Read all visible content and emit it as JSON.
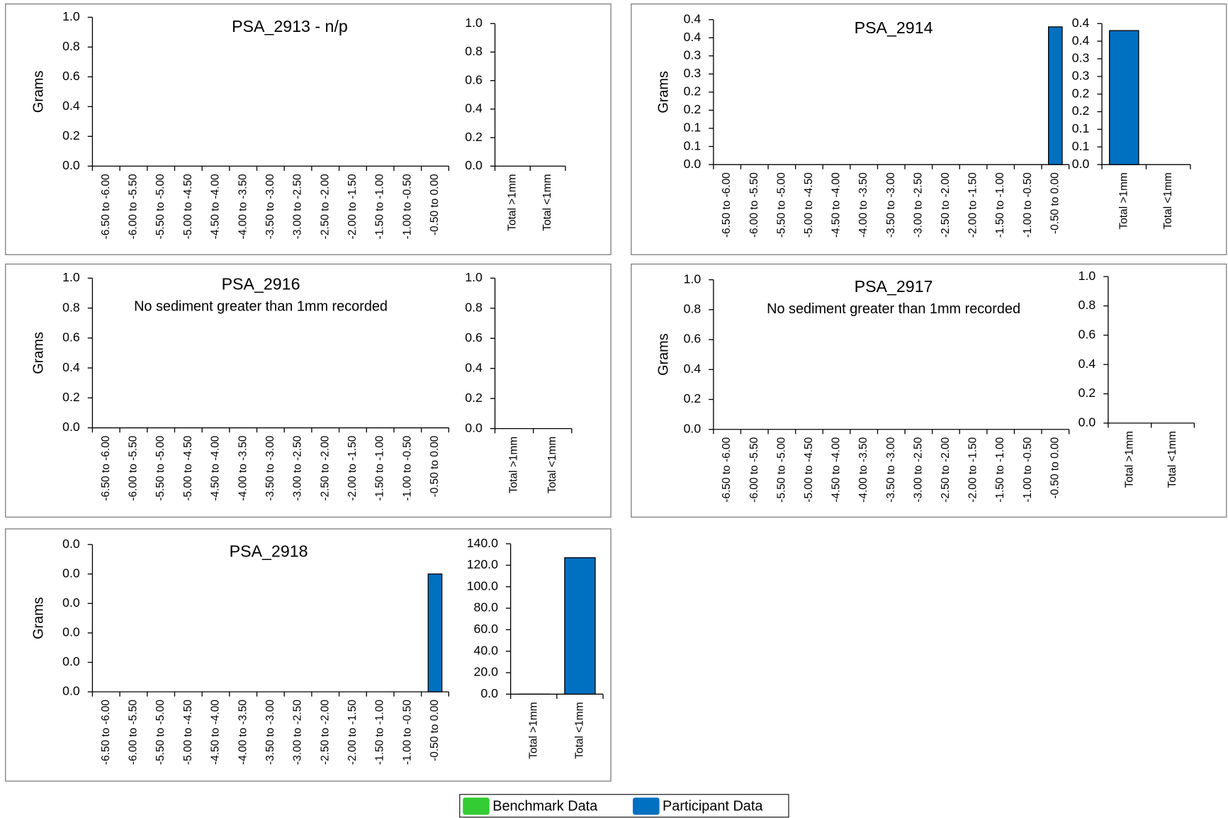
{
  "chart_data": [
    {
      "type": "bar",
      "title": "PSA_2913 - n/p",
      "y_label": "Grams",
      "categories": [
        "-6.50 to -6.00",
        "-6.00 to -5.50",
        "-5.50 to -5.00",
        "-5.00 to -4.50",
        "-4.50 to -4.00",
        "-4.00 to -3.50",
        "-3.50 to -3.00",
        "-3.00 to -2.50",
        "-2.50 to -2.00",
        "-2.00 to -1.50",
        "-1.50 to -1.00",
        "-1.00 to -0.50",
        "-0.50 to 0.00"
      ],
      "series": [
        {
          "name": "Benchmark Data",
          "color": "#33cc33",
          "values": [
            null,
            null,
            null,
            null,
            null,
            null,
            null,
            null,
            null,
            null,
            null,
            null,
            null
          ]
        },
        {
          "name": "Participant Data",
          "color": "#0070c0",
          "values": [
            null,
            null,
            null,
            null,
            null,
            null,
            null,
            null,
            null,
            null,
            null,
            null,
            null
          ]
        }
      ],
      "ylim": [
        0,
        1
      ],
      "yticks": [
        {
          "value": 0,
          "label": "0.0"
        },
        0.2,
        0.4,
        0.6,
        0.8,
        {
          "value": 1,
          "label": "1.0"
        }
      ]
    },
    {
      "type": "bar",
      "categories": [
        "Total >1mm",
        "Total <1mm"
      ],
      "series": [
        {
          "name": "Benchmark Data",
          "color": "#33cc33",
          "values": [
            null,
            null
          ]
        },
        {
          "name": "Participant Data",
          "color": "#0070c0",
          "values": [
            0,
            0
          ]
        }
      ],
      "ylim": [
        0,
        1
      ],
      "yticks": [
        {
          "value": 0,
          "label": "0.0"
        },
        0.2,
        0.4,
        0.6,
        0.8,
        {
          "value": 1,
          "label": "1.0"
        }
      ]
    },
    {
      "type": "bar",
      "title": "PSA_2914",
      "y_label": "Grams",
      "categories": [
        "-6.50 to -6.00",
        "-6.00 to -5.50",
        "-5.50 to -5.00",
        "-5.00 to -4.50",
        "-4.50 to -4.00",
        "-4.00 to -3.50",
        "-3.50 to -3.00",
        "-3.00 to -2.50",
        "-2.50 to -2.00",
        "-2.00 to -1.50",
        "-1.50 to -1.00",
        "-1.00 to -0.50",
        "-0.50 to 0.00"
      ],
      "series": [
        {
          "name": "Benchmark Data",
          "color": "#33cc33",
          "values": [
            null,
            null,
            null,
            null,
            null,
            null,
            null,
            null,
            null,
            null,
            null,
            null,
            null
          ]
        },
        {
          "name": "Participant Data",
          "color": "#0070c0",
          "values": [
            0,
            0,
            0,
            0,
            0,
            0,
            0,
            0,
            0,
            0,
            0,
            0,
            0.38
          ]
        }
      ],
      "ylim": [
        0,
        0.4
      ],
      "yticks": [
        {
          "value": 0,
          "label": "0.0"
        },
        {
          "value": 0.05,
          "label": "0.1"
        },
        0.1,
        {
          "value": 0.15,
          "label": "0.2"
        },
        0.2,
        {
          "value": 0.25,
          "label": "0.3"
        },
        0.3,
        {
          "value": 0.35,
          "label": "0.4"
        },
        0.4
      ]
    },
    {
      "type": "bar",
      "categories": [
        "Total >1mm",
        "Total <1mm"
      ],
      "series": [
        {
          "name": "Benchmark Data",
          "color": "#33cc33",
          "values": [
            null,
            null
          ]
        },
        {
          "name": "Participant Data",
          "color": "#0070c0",
          "values": [
            0.38,
            0
          ]
        }
      ],
      "ylim": [
        0,
        0.4
      ],
      "yticks": [
        {
          "value": 0,
          "label": "0.0"
        },
        {
          "value": 0.05,
          "label": "0.1"
        },
        0.1,
        {
          "value": 0.15,
          "label": "0.2"
        },
        0.2,
        {
          "value": 0.25,
          "label": "0.3"
        },
        0.3,
        {
          "value": 0.35,
          "label": "0.4"
        },
        0.4
      ]
    },
    {
      "type": "bar",
      "title": "PSA_2916",
      "annotation": "No sediment greater than 1mm recorded",
      "y_label": "Grams",
      "categories": [
        "-6.50 to -6.00",
        "-6.00 to -5.50",
        "-5.50 to -5.00",
        "-5.00 to -4.50",
        "-4.50 to -4.00",
        "-4.00 to -3.50",
        "-3.50 to -3.00",
        "-3.00 to -2.50",
        "-2.50 to -2.00",
        "-2.00 to -1.50",
        "-1.50 to -1.00",
        "-1.00 to -0.50",
        "-0.50 to 0.00"
      ],
      "series": [
        {
          "name": "Benchmark Data",
          "color": "#33cc33",
          "values": [
            null,
            null,
            null,
            null,
            null,
            null,
            null,
            null,
            null,
            null,
            null,
            null,
            null
          ]
        },
        {
          "name": "Participant Data",
          "color": "#0070c0",
          "values": [
            0,
            0,
            0,
            0,
            0,
            0,
            0,
            0,
            0,
            0,
            0,
            0,
            0
          ]
        }
      ],
      "ylim": [
        0,
        1
      ],
      "yticks": [
        {
          "value": 0,
          "label": "0.0"
        },
        0.2,
        0.4,
        0.6,
        0.8,
        {
          "value": 1,
          "label": "1.0"
        }
      ]
    },
    {
      "type": "bar",
      "categories": [
        "Total >1mm",
        "Total <1mm"
      ],
      "series": [
        {
          "name": "Benchmark Data",
          "color": "#33cc33",
          "values": [
            null,
            null
          ]
        },
        {
          "name": "Participant Data",
          "color": "#0070c0",
          "values": [
            0,
            0
          ]
        }
      ],
      "ylim": [
        0,
        1
      ],
      "yticks": [
        {
          "value": 0,
          "label": "0.0"
        },
        0.2,
        0.4,
        0.6,
        0.8,
        {
          "value": 1,
          "label": "1.0"
        }
      ]
    },
    {
      "type": "bar",
      "title": "PSA_2917",
      "annotation": "No sediment greater than 1mm recorded",
      "y_label": "Grams",
      "categories": [
        "-6.50 to -6.00",
        "-6.00 to -5.50",
        "-5.50 to -5.00",
        "-5.00 to -4.50",
        "-4.50 to -4.00",
        "-4.00 to -3.50",
        "-3.50 to -3.00",
        "-3.00 to -2.50",
        "-2.50 to -2.00",
        "-2.00 to -1.50",
        "-1.50 to -1.00",
        "-1.00 to -0.50",
        "-0.50 to 0.00"
      ],
      "series": [
        {
          "name": "Benchmark Data",
          "color": "#33cc33",
          "values": [
            null,
            null,
            null,
            null,
            null,
            null,
            null,
            null,
            null,
            null,
            null,
            null,
            null
          ]
        },
        {
          "name": "Participant Data",
          "color": "#0070c0",
          "values": [
            0,
            0,
            0,
            0,
            0,
            0,
            0,
            0,
            0,
            0,
            0,
            0,
            0
          ]
        }
      ],
      "ylim": [
        0,
        1
      ],
      "yticks": [
        {
          "value": 0,
          "label": "0.0"
        },
        0.2,
        0.4,
        0.6,
        0.8,
        {
          "value": 1,
          "label": "1.0"
        }
      ]
    },
    {
      "type": "bar",
      "categories": [
        "Total >1mm",
        "Total <1mm"
      ],
      "series": [
        {
          "name": "Benchmark Data",
          "color": "#33cc33",
          "values": [
            null,
            null
          ]
        },
        {
          "name": "Participant Data",
          "color": "#0070c0",
          "values": [
            0,
            0
          ]
        }
      ],
      "ylim": [
        0,
        1
      ],
      "yticks": [
        {
          "value": 0,
          "label": "0.0"
        },
        0.2,
        0.4,
        0.6,
        0.8,
        {
          "value": 1,
          "label": "1.0"
        }
      ]
    },
    {
      "type": "bar",
      "title": "PSA_2918",
      "y_label": "Grams",
      "categories": [
        "-6.50 to -6.00",
        "-6.00 to -5.50",
        "-5.50 to -5.00",
        "-5.00 to -4.50",
        "-4.50 to -4.00",
        "-4.00 to -3.50",
        "-3.50 to -3.00",
        "-3.00 to -2.50",
        "-2.50 to -2.00",
        "-2.00 to -1.50",
        "-1.50 to -1.00",
        "-1.00 to -0.50",
        "-0.50 to 0.00"
      ],
      "series": [
        {
          "name": "Benchmark Data",
          "color": "#33cc33",
          "values": [
            null,
            null,
            null,
            null,
            null,
            null,
            null,
            null,
            null,
            null,
            null,
            null,
            null
          ]
        },
        {
          "name": "Participant Data",
          "color": "#0070c0",
          "values": [
            0,
            0,
            0,
            0,
            0,
            0,
            0,
            0,
            0,
            0,
            0,
            0,
            0.02
          ]
        }
      ],
      "ylim": [
        0,
        0.025
      ],
      "yticks": [
        {
          "value": 0,
          "label": "0.0"
        },
        {
          "value": 0.005,
          "label": "0.0"
        },
        {
          "value": 0.01,
          "label": "0.0"
        },
        {
          "value": 0.015,
          "label": "0.0"
        },
        {
          "value": 0.02,
          "label": "0.0"
        },
        {
          "value": 0.025,
          "label": "0.0"
        }
      ]
    },
    {
      "type": "bar",
      "categories": [
        "Total >1mm",
        "Total <1mm"
      ],
      "series": [
        {
          "name": "Benchmark Data",
          "color": "#33cc33",
          "values": [
            null,
            null
          ]
        },
        {
          "name": "Participant Data",
          "color": "#0070c0",
          "values": [
            0.02,
            127
          ]
        }
      ],
      "ylim": [
        0,
        140
      ],
      "yticks": [
        {
          "value": 0,
          "label": "0.0"
        },
        {
          "value": 20,
          "label": "20.0"
        },
        {
          "value": 40,
          "label": "40.0"
        },
        {
          "value": 60,
          "label": "60.0"
        },
        {
          "value": 80,
          "label": "80.0"
        },
        {
          "value": 100,
          "label": "100.0"
        },
        {
          "value": 120,
          "label": "120.0"
        },
        {
          "value": 140,
          "label": "140.0"
        }
      ]
    }
  ]
}
